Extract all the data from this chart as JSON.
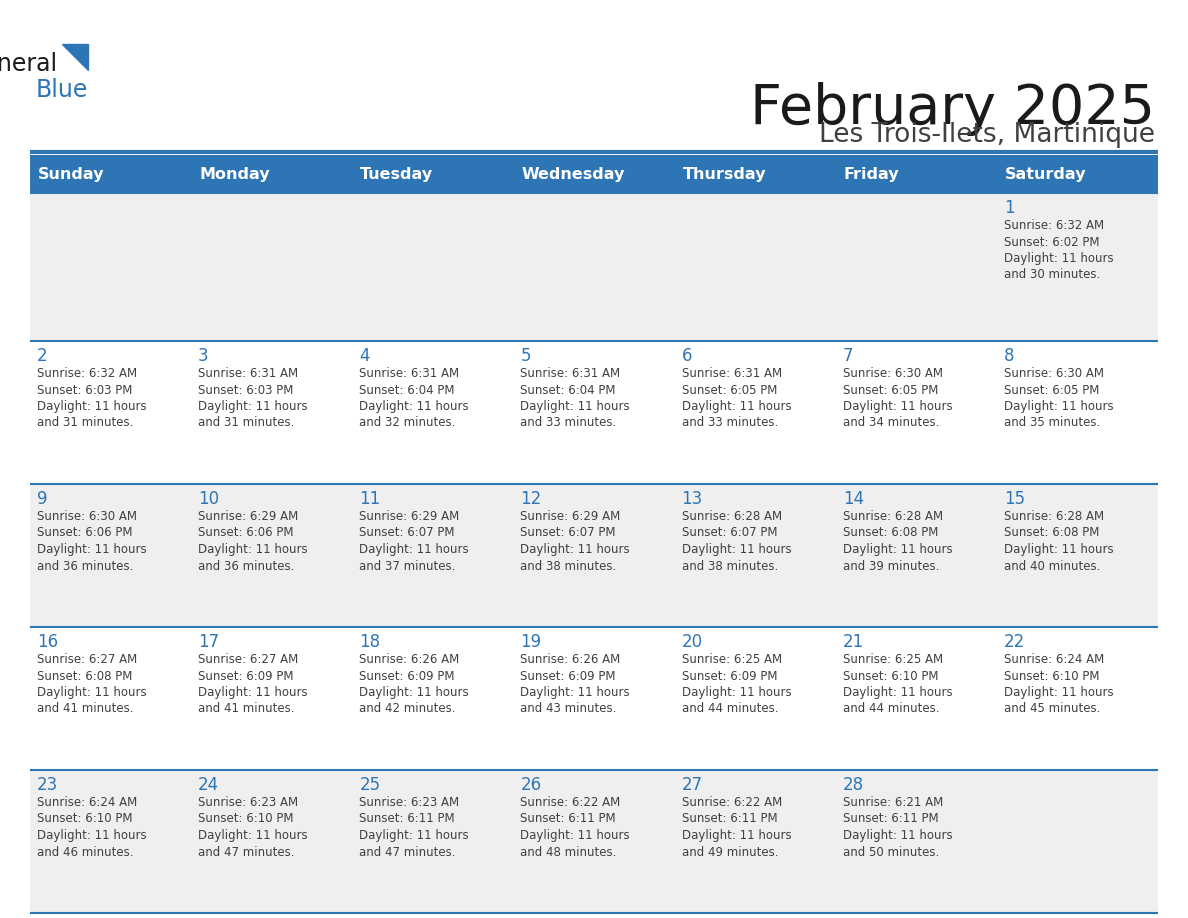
{
  "title": "February 2025",
  "subtitle": "Les Trois-Ilets, Martinique",
  "days_of_week": [
    "Sunday",
    "Monday",
    "Tuesday",
    "Wednesday",
    "Thursday",
    "Friday",
    "Saturday"
  ],
  "header_bg": "#2E75B6",
  "header_text": "#FFFFFF",
  "row_bg_light": "#EFEFEF",
  "row_bg_white": "#FFFFFF",
  "day_number_color": "#2E75B6",
  "info_text_color": "#404040",
  "border_color": "#2E75B6",
  "title_color": "#1a1a1a",
  "subtitle_color": "#404040",
  "calendar_data": [
    [
      null,
      null,
      null,
      null,
      null,
      null,
      1
    ],
    [
      2,
      3,
      4,
      5,
      6,
      7,
      8
    ],
    [
      9,
      10,
      11,
      12,
      13,
      14,
      15
    ],
    [
      16,
      17,
      18,
      19,
      20,
      21,
      22
    ],
    [
      23,
      24,
      25,
      26,
      27,
      28,
      null
    ]
  ],
  "sunrise_data": {
    "1": "6:32 AM",
    "2": "6:32 AM",
    "3": "6:31 AM",
    "4": "6:31 AM",
    "5": "6:31 AM",
    "6": "6:31 AM",
    "7": "6:30 AM",
    "8": "6:30 AM",
    "9": "6:30 AM",
    "10": "6:29 AM",
    "11": "6:29 AM",
    "12": "6:29 AM",
    "13": "6:28 AM",
    "14": "6:28 AM",
    "15": "6:28 AM",
    "16": "6:27 AM",
    "17": "6:27 AM",
    "18": "6:26 AM",
    "19": "6:26 AM",
    "20": "6:25 AM",
    "21": "6:25 AM",
    "22": "6:24 AM",
    "23": "6:24 AM",
    "24": "6:23 AM",
    "25": "6:23 AM",
    "26": "6:22 AM",
    "27": "6:22 AM",
    "28": "6:21 AM"
  },
  "sunset_data": {
    "1": "6:02 PM",
    "2": "6:03 PM",
    "3": "6:03 PM",
    "4": "6:04 PM",
    "5": "6:04 PM",
    "6": "6:05 PM",
    "7": "6:05 PM",
    "8": "6:05 PM",
    "9": "6:06 PM",
    "10": "6:06 PM",
    "11": "6:07 PM",
    "12": "6:07 PM",
    "13": "6:07 PM",
    "14": "6:08 PM",
    "15": "6:08 PM",
    "16": "6:08 PM",
    "17": "6:09 PM",
    "18": "6:09 PM",
    "19": "6:09 PM",
    "20": "6:09 PM",
    "21": "6:10 PM",
    "22": "6:10 PM",
    "23": "6:10 PM",
    "24": "6:10 PM",
    "25": "6:11 PM",
    "26": "6:11 PM",
    "27": "6:11 PM",
    "28": "6:11 PM"
  },
  "daylight_minutes": {
    "1": 30,
    "2": 31,
    "3": 31,
    "4": 32,
    "5": 33,
    "6": 33,
    "7": 34,
    "8": 35,
    "9": 36,
    "10": 36,
    "11": 37,
    "12": 38,
    "13": 38,
    "14": 39,
    "15": 40,
    "16": 41,
    "17": 41,
    "18": 42,
    "19": 43,
    "20": 44,
    "21": 44,
    "22": 45,
    "23": 46,
    "24": 47,
    "25": 47,
    "26": 48,
    "27": 49,
    "28": 50
  }
}
